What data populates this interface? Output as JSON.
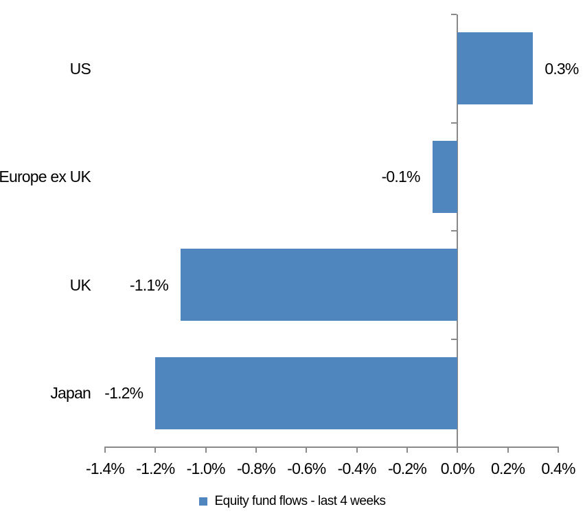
{
  "chart_data": {
    "type": "bar",
    "orientation": "horizontal",
    "categories": [
      "US",
      "Europe ex UK",
      "UK",
      "Japan"
    ],
    "values": [
      0.3,
      -0.1,
      -1.1,
      -1.2
    ],
    "value_labels": [
      "0.3%",
      "-0.1%",
      "-1.1%",
      "-1.2%"
    ],
    "series_name": "Equity fund flows - last 4 weeks",
    "x_tick_labels": [
      "-1.4%",
      "-1.2%",
      "-1.0%",
      "-0.8%",
      "-0.6%",
      "-0.4%",
      "-0.2%",
      "0.0%",
      "0.2%",
      "0.4%"
    ],
    "xlim": [
      -1.4,
      0.4
    ],
    "x_tick_step": 0.2,
    "grid": false,
    "legend_position": "bottom",
    "data_label_position": "outside-end",
    "colors": {
      "bar": "#4E86BD",
      "axis": "#898989",
      "text": "#000000",
      "background": "#FFFFFF"
    }
  }
}
